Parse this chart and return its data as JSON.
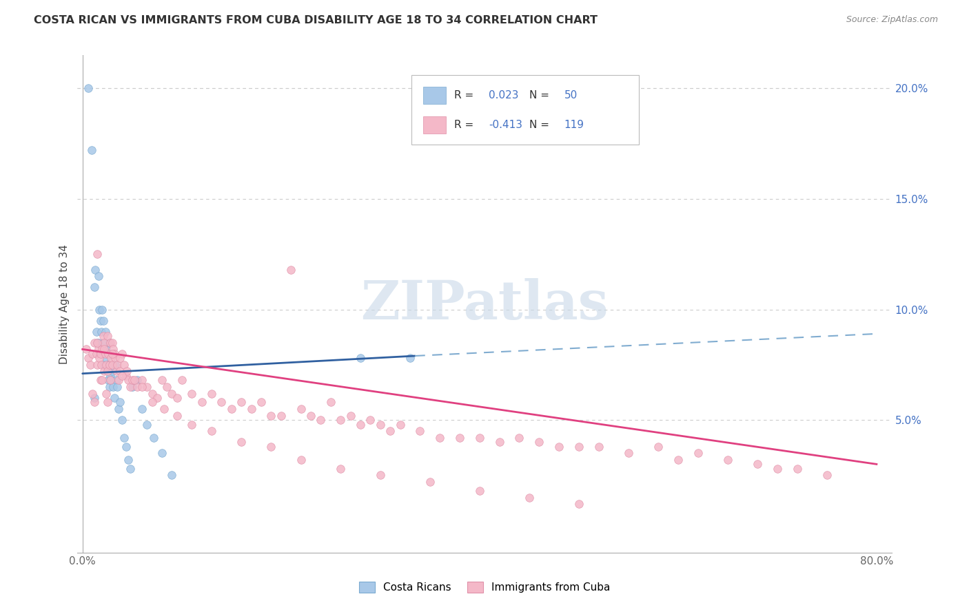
{
  "title": "COSTA RICAN VS IMMIGRANTS FROM CUBA DISABILITY AGE 18 TO 34 CORRELATION CHART",
  "source": "Source: ZipAtlas.com",
  "ylabel": "Disability Age 18 to 34",
  "xlim": [
    -0.005,
    0.815
  ],
  "ylim": [
    -0.01,
    0.215
  ],
  "xtick_positions": [
    0.0,
    0.1333,
    0.2667,
    0.4,
    0.5333,
    0.6667,
    0.8
  ],
  "xtick_labels": [
    "0.0%",
    "",
    "",
    "",
    "",
    "",
    "80.0%"
  ],
  "yticks_right": [
    0.05,
    0.1,
    0.15,
    0.2
  ],
  "ytick_right_labels": [
    "5.0%",
    "10.0%",
    "15.0%",
    "20.0%"
  ],
  "blue_color": "#a8c8e8",
  "pink_color": "#f4b8c8",
  "trend_blue_solid_color": "#3060a0",
  "trend_blue_dashed_color": "#80acd0",
  "trend_pink_color": "#e04080",
  "R_blue": 0.023,
  "N_blue": 50,
  "R_pink": -0.413,
  "N_pink": 119,
  "label_blue": "Costa Ricans",
  "label_pink": "Immigrants from Cuba",
  "legend_r_label_color": "#333333",
  "legend_num_color": "#4472c4",
  "blue_trend_x0": 0.0,
  "blue_trend_x_solid_end": 0.335,
  "blue_trend_x_dashed_end": 0.8,
  "blue_trend_y0": 0.071,
  "blue_trend_y_solid_end": 0.079,
  "blue_trend_y_dashed_end": 0.089,
  "pink_trend_x0": 0.0,
  "pink_trend_x1": 0.8,
  "pink_trend_y0": 0.082,
  "pink_trend_y1": 0.03,
  "watermark_text": "ZIPatlas",
  "watermark_color": "#c8d8e8",
  "grid_color": "#cccccc",
  "right_tick_color": "#4472c4",
  "blue_scatter_x": [
    0.006,
    0.009,
    0.012,
    0.013,
    0.014,
    0.015,
    0.016,
    0.016,
    0.017,
    0.018,
    0.019,
    0.019,
    0.02,
    0.021,
    0.022,
    0.022,
    0.023,
    0.024,
    0.024,
    0.025,
    0.026,
    0.026,
    0.027,
    0.027,
    0.028,
    0.028,
    0.029,
    0.03,
    0.031,
    0.032,
    0.033,
    0.034,
    0.035,
    0.036,
    0.038,
    0.04,
    0.042,
    0.044,
    0.046,
    0.048,
    0.05,
    0.055,
    0.06,
    0.065,
    0.072,
    0.08,
    0.09,
    0.28,
    0.33,
    0.012
  ],
  "blue_scatter_y": [
    0.2,
    0.172,
    0.11,
    0.118,
    0.09,
    0.085,
    0.115,
    0.085,
    0.1,
    0.095,
    0.09,
    0.08,
    0.1,
    0.095,
    0.085,
    0.075,
    0.09,
    0.082,
    0.078,
    0.075,
    0.072,
    0.068,
    0.085,
    0.065,
    0.08,
    0.07,
    0.068,
    0.072,
    0.065,
    0.06,
    0.075,
    0.068,
    0.065,
    0.055,
    0.058,
    0.05,
    0.042,
    0.038,
    0.032,
    0.028,
    0.065,
    0.068,
    0.055,
    0.048,
    0.042,
    0.035,
    0.025,
    0.078,
    0.078,
    0.06
  ],
  "pink_scatter_x": [
    0.004,
    0.006,
    0.008,
    0.01,
    0.01,
    0.012,
    0.012,
    0.014,
    0.015,
    0.015,
    0.016,
    0.017,
    0.018,
    0.018,
    0.019,
    0.02,
    0.02,
    0.021,
    0.022,
    0.022,
    0.023,
    0.024,
    0.024,
    0.025,
    0.025,
    0.026,
    0.027,
    0.028,
    0.028,
    0.029,
    0.03,
    0.03,
    0.031,
    0.032,
    0.033,
    0.034,
    0.035,
    0.036,
    0.038,
    0.04,
    0.042,
    0.044,
    0.046,
    0.048,
    0.05,
    0.055,
    0.06,
    0.065,
    0.07,
    0.075,
    0.08,
    0.085,
    0.09,
    0.095,
    0.1,
    0.11,
    0.12,
    0.13,
    0.14,
    0.15,
    0.16,
    0.17,
    0.18,
    0.19,
    0.2,
    0.21,
    0.22,
    0.23,
    0.24,
    0.25,
    0.26,
    0.27,
    0.28,
    0.29,
    0.3,
    0.31,
    0.32,
    0.34,
    0.36,
    0.38,
    0.4,
    0.42,
    0.44,
    0.46,
    0.48,
    0.5,
    0.52,
    0.55,
    0.58,
    0.6,
    0.62,
    0.65,
    0.68,
    0.7,
    0.72,
    0.75,
    0.015,
    0.022,
    0.03,
    0.038,
    0.045,
    0.052,
    0.06,
    0.07,
    0.082,
    0.095,
    0.11,
    0.13,
    0.16,
    0.19,
    0.22,
    0.26,
    0.3,
    0.35,
    0.4,
    0.45,
    0.5,
    0.025,
    0.04
  ],
  "pink_scatter_y": [
    0.082,
    0.078,
    0.075,
    0.08,
    0.062,
    0.058,
    0.085,
    0.08,
    0.125,
    0.075,
    0.082,
    0.078,
    0.08,
    0.068,
    0.075,
    0.082,
    0.068,
    0.088,
    0.085,
    0.072,
    0.08,
    0.075,
    0.062,
    0.088,
    0.072,
    0.08,
    0.075,
    0.085,
    0.068,
    0.078,
    0.085,
    0.075,
    0.082,
    0.08,
    0.078,
    0.072,
    0.075,
    0.068,
    0.072,
    0.08,
    0.075,
    0.07,
    0.068,
    0.065,
    0.068,
    0.065,
    0.068,
    0.065,
    0.062,
    0.06,
    0.068,
    0.065,
    0.062,
    0.06,
    0.068,
    0.062,
    0.058,
    0.062,
    0.058,
    0.055,
    0.058,
    0.055,
    0.058,
    0.052,
    0.052,
    0.118,
    0.055,
    0.052,
    0.05,
    0.058,
    0.05,
    0.052,
    0.048,
    0.05,
    0.048,
    0.045,
    0.048,
    0.045,
    0.042,
    0.042,
    0.042,
    0.04,
    0.042,
    0.04,
    0.038,
    0.038,
    0.038,
    0.035,
    0.038,
    0.032,
    0.035,
    0.032,
    0.03,
    0.028,
    0.028,
    0.025,
    0.085,
    0.082,
    0.08,
    0.078,
    0.072,
    0.068,
    0.065,
    0.058,
    0.055,
    0.052,
    0.048,
    0.045,
    0.04,
    0.038,
    0.032,
    0.028,
    0.025,
    0.022,
    0.018,
    0.015,
    0.012,
    0.058,
    0.07
  ]
}
